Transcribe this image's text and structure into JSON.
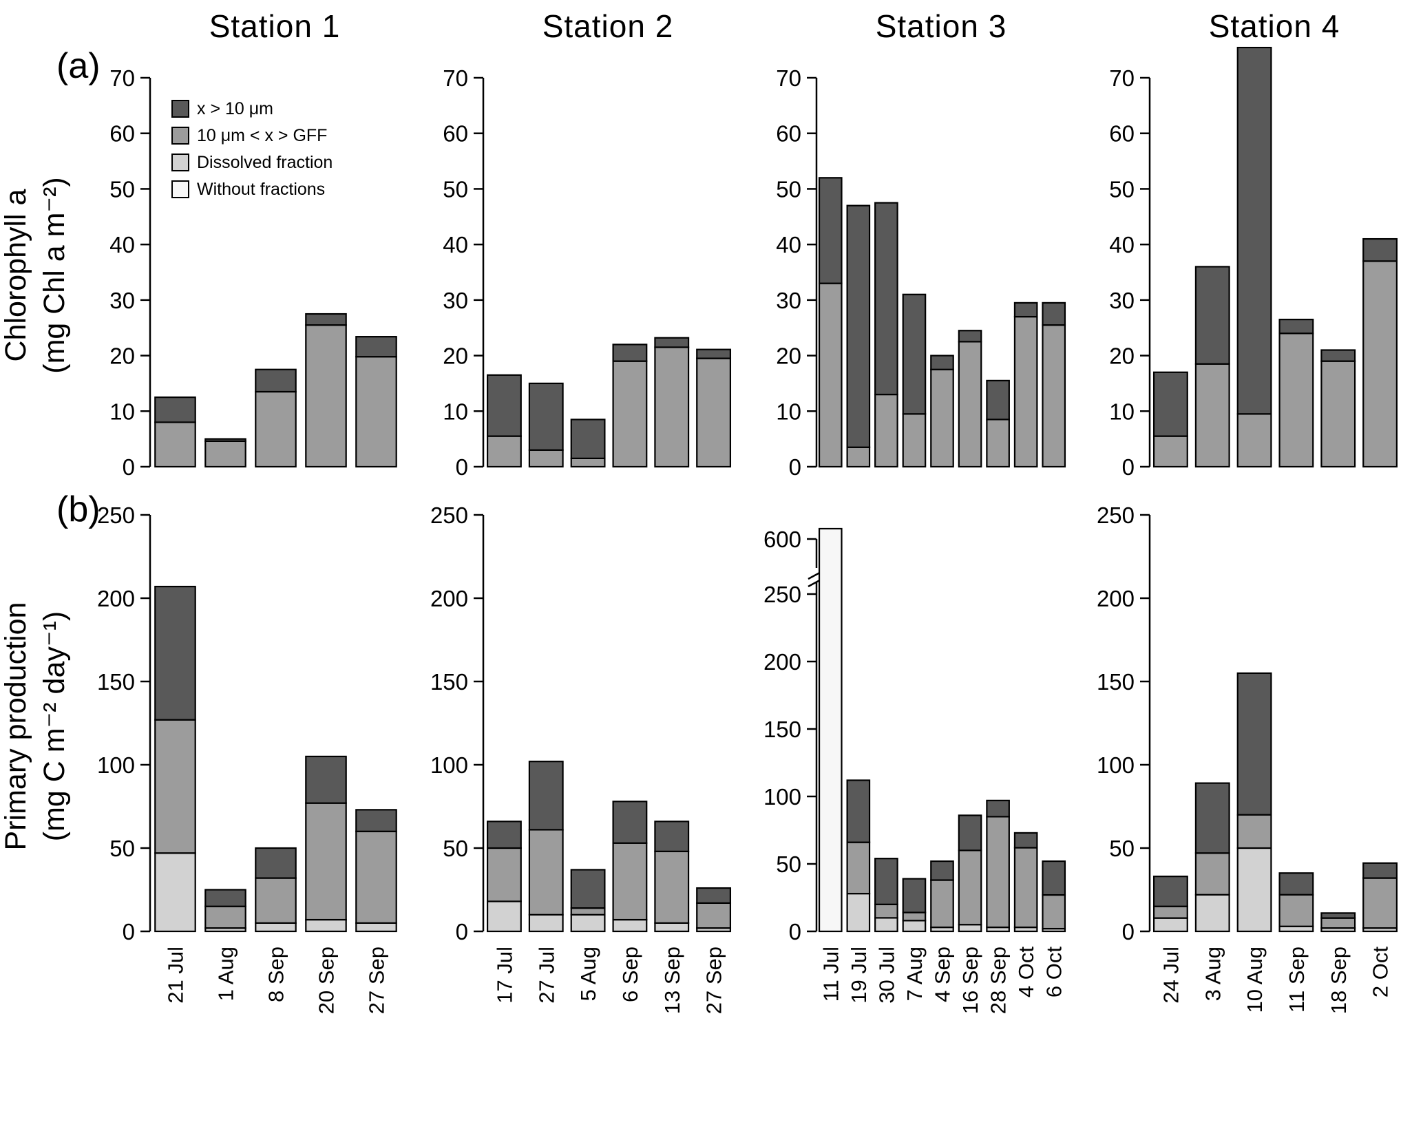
{
  "figure": {
    "panel_a_label": "(a)",
    "panel_b_label": "(b)",
    "stations": [
      "Station 1",
      "Station 2",
      "Station 3",
      "Station 4"
    ],
    "row_a_ylabel": [
      "Chlorophyll a",
      "(mg Chl a m⁻²)"
    ],
    "row_b_ylabel": [
      "Primary production",
      "(mg C m⁻² day⁻¹)"
    ]
  },
  "legend": {
    "items": [
      "x > 10 μm",
      "10 μm < x > GFF",
      "Dissolved fraction",
      "Without fractions"
    ]
  },
  "colors": {
    "x > 10 μm": "#595959",
    "10 μm < x > GFF": "#9c9c9c",
    "Dissolved fraction": "#d2d2d2",
    "Without fractions": "#f7f7f7"
  },
  "chart_data": [
    {
      "id": "chlorophyll-station-1",
      "type": "bar",
      "stacked": true,
      "row": "a",
      "title": "Station 1",
      "ylabel": "Chlorophyll a (mg Chl a m⁻²)",
      "ylim": [
        0,
        70
      ],
      "yticks": [
        0,
        10,
        20,
        30,
        40,
        50,
        60,
        70
      ],
      "legend": true,
      "categories": [
        "21 Jul",
        "1 Aug",
        "8 Sep",
        "20 Sep",
        "27 Sep"
      ],
      "series": [
        {
          "name": "10 μm < x > GFF",
          "values": [
            8,
            4.6,
            13.5,
            25.5,
            19.8
          ]
        },
        {
          "name": "x > 10 μm",
          "values": [
            4.5,
            0.4,
            4,
            2,
            3.6
          ]
        }
      ]
    },
    {
      "id": "chlorophyll-station-2",
      "type": "bar",
      "stacked": true,
      "row": "a",
      "title": "Station 2",
      "ylabel": "Chlorophyll a (mg Chl a m⁻²)",
      "ylim": [
        0,
        70
      ],
      "yticks": [
        0,
        10,
        20,
        30,
        40,
        50,
        60,
        70
      ],
      "categories": [
        "17 Jul",
        "27 Jul",
        "5 Aug",
        "6 Sep",
        "13 Sep",
        "27 Sep"
      ],
      "series": [
        {
          "name": "10 μm < x > GFF",
          "values": [
            5.5,
            3,
            1.5,
            19,
            21.5,
            19.5
          ]
        },
        {
          "name": "x > 10 μm",
          "values": [
            11,
            12,
            7,
            3,
            1.7,
            1.6
          ]
        }
      ]
    },
    {
      "id": "chlorophyll-station-3",
      "type": "bar",
      "stacked": true,
      "row": "a",
      "title": "Station 3",
      "ylabel": "Chlorophyll a (mg Chl a m⁻²)",
      "ylim": [
        0,
        70
      ],
      "yticks": [
        0,
        10,
        20,
        30,
        40,
        50,
        60,
        70
      ],
      "categories": [
        "11 Jul",
        "19 Jul",
        "30 Jul",
        "7 Aug",
        "4 Sep",
        "16 Sep",
        "28 Sep",
        "4 Oct",
        "6 Oct"
      ],
      "series": [
        {
          "name": "10 μm < x > GFF",
          "values": [
            33,
            3.5,
            13,
            9.5,
            17.5,
            22.5,
            8.5,
            27,
            25.5
          ]
        },
        {
          "name": "x > 10 μm",
          "values": [
            19,
            43.5,
            34.5,
            21.5,
            2.5,
            2,
            7,
            2.5,
            4
          ]
        }
      ]
    },
    {
      "id": "chlorophyll-station-4",
      "type": "bar",
      "stacked": true,
      "row": "a",
      "title": "Station 4",
      "ylabel": "Chlorophyll a (mg Chl a m⁻²)",
      "ylim": [
        0,
        70
      ],
      "yticks": [
        0,
        10,
        20,
        30,
        40,
        50,
        60,
        70
      ],
      "categories": [
        "24 Jul",
        "3 Aug",
        "10 Aug",
        "11 Sep",
        "18 Sep",
        "2 Oct"
      ],
      "series": [
        {
          "name": "10 μm < x > GFF",
          "values": [
            5.5,
            18.5,
            9.5,
            24,
            19,
            37
          ]
        },
        {
          "name": "x > 10 μm",
          "values": [
            11.5,
            17.5,
            66,
            2.5,
            2,
            4
          ]
        }
      ]
    },
    {
      "id": "production-station-1",
      "type": "bar",
      "stacked": true,
      "row": "b",
      "title": "Station 1",
      "ylabel": "Primary production (mg C m⁻² day⁻¹)",
      "ylim": [
        0,
        250
      ],
      "yticks": [
        0,
        50,
        100,
        150,
        200,
        250
      ],
      "categories": [
        "21 Jul",
        "1 Aug",
        "8 Sep",
        "20 Sep",
        "27 Sep"
      ],
      "series": [
        {
          "name": "Dissolved fraction",
          "values": [
            47,
            2,
            5,
            7,
            5
          ]
        },
        {
          "name": "10 μm < x > GFF",
          "values": [
            80,
            13,
            27,
            70,
            55
          ]
        },
        {
          "name": "x > 10 μm",
          "values": [
            80,
            10,
            18,
            28,
            13
          ]
        }
      ]
    },
    {
      "id": "production-station-2",
      "type": "bar",
      "stacked": true,
      "row": "b",
      "title": "Station 2",
      "ylabel": "Primary production (mg C m⁻² day⁻¹)",
      "ylim": [
        0,
        250
      ],
      "yticks": [
        0,
        50,
        100,
        150,
        200,
        250
      ],
      "categories": [
        "17 Jul",
        "27 Jul",
        "5 Aug",
        "6 Sep",
        "13 Sep",
        "27 Sep"
      ],
      "series": [
        {
          "name": "Dissolved fraction",
          "values": [
            18,
            10,
            10,
            7,
            5,
            2
          ]
        },
        {
          "name": "10 μm < x > GFF",
          "values": [
            32,
            51,
            4,
            46,
            43,
            15
          ]
        },
        {
          "name": "x > 10 μm",
          "values": [
            16,
            41,
            23,
            25,
            18,
            9
          ]
        }
      ]
    },
    {
      "id": "production-station-3",
      "type": "bar",
      "stacked": true,
      "row": "b",
      "title": "Station 3",
      "ylabel": "Primary production (mg C m⁻² day⁻¹)",
      "ylim": [
        0,
        250
      ],
      "yticks": [
        0,
        50,
        100,
        150,
        200,
        250
      ],
      "axis_break": {
        "break_after": 250,
        "upper_tick": 600
      },
      "categories": [
        "11 Jul",
        "19 Jul",
        "30 Jul",
        "7 Aug",
        "4 Sep",
        "16 Sep",
        "28 Sep",
        "4 Oct",
        "6 Oct"
      ],
      "series": [
        {
          "name": "Without fractions",
          "values": [
            630,
            0,
            0,
            0,
            0,
            0,
            0,
            0,
            0
          ]
        },
        {
          "name": "Dissolved fraction",
          "values": [
            0,
            28,
            10,
            8,
            3,
            5,
            3,
            3,
            2
          ]
        },
        {
          "name": "10 μm < x > GFF",
          "values": [
            0,
            38,
            10,
            6,
            35,
            55,
            82,
            59,
            25
          ]
        },
        {
          "name": "x > 10 μm",
          "values": [
            0,
            46,
            34,
            25,
            14,
            26,
            12,
            11,
            25
          ]
        }
      ]
    },
    {
      "id": "production-station-4",
      "type": "bar",
      "stacked": true,
      "row": "b",
      "title": "Station 4",
      "ylabel": "Primary production (mg C m⁻² day⁻¹)",
      "ylim": [
        0,
        250
      ],
      "yticks": [
        0,
        50,
        100,
        150,
        200,
        250
      ],
      "categories": [
        "24 Jul",
        "3 Aug",
        "10 Aug",
        "11 Sep",
        "18 Sep",
        "2 Oct"
      ],
      "series": [
        {
          "name": "Dissolved fraction",
          "values": [
            8,
            22,
            50,
            3,
            2,
            2
          ]
        },
        {
          "name": "10 μm < x > GFF",
          "values": [
            7,
            25,
            20,
            19,
            6,
            30
          ]
        },
        {
          "name": "x > 10 μm",
          "values": [
            18,
            42,
            85,
            13,
            3,
            9
          ]
        }
      ]
    }
  ]
}
